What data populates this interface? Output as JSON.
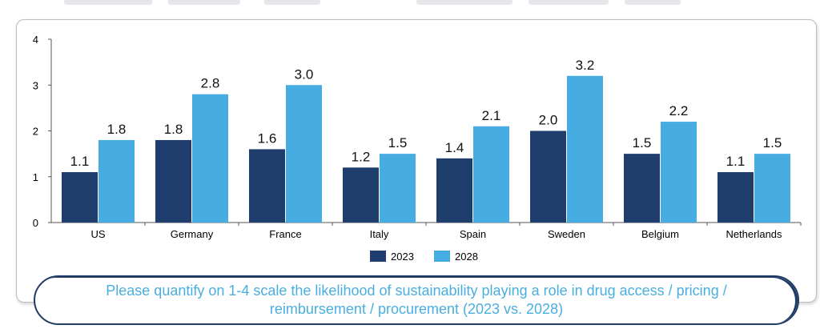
{
  "chart_data": {
    "type": "bar",
    "categories": [
      "US",
      "Germany",
      "France",
      "Italy",
      "Spain",
      "Sweden",
      "Belgium",
      "Netherlands"
    ],
    "series": [
      {
        "name": "2023",
        "color": "#1f3e6e",
        "values": [
          1.1,
          1.8,
          1.6,
          1.2,
          1.4,
          2.0,
          1.5,
          1.1
        ]
      },
      {
        "name": "2028",
        "color": "#47ace2",
        "values": [
          1.8,
          2.8,
          3.0,
          1.5,
          2.1,
          3.2,
          2.2,
          1.5
        ]
      }
    ],
    "value_labels": {
      "2023": [
        "1.1",
        "1.8",
        "1.6",
        "1.2",
        "1.4",
        "2.0",
        "1.5",
        "1.1"
      ],
      "2028": [
        "1.8",
        "2.8",
        "3.0",
        "1.5",
        "2.1",
        "3.2",
        "2.2",
        "1.5"
      ]
    },
    "yticks": [
      "0",
      "1",
      "2",
      "3",
      "4"
    ],
    "ylim": [
      0,
      4
    ],
    "xlabel": "",
    "ylabel": "",
    "legend": {
      "position": "bottom",
      "entries": [
        "2023",
        "2028"
      ]
    }
  },
  "caption": "Please quantify on 1-4 scale the likelihood of sustainability playing a role in drug access / pricing / reimbursement / procurement (2023 vs. 2028)",
  "colors": {
    "panel_border": "#b9bdc3",
    "caption_text": "#4aaee0",
    "caption_border": "#1f3b66"
  }
}
